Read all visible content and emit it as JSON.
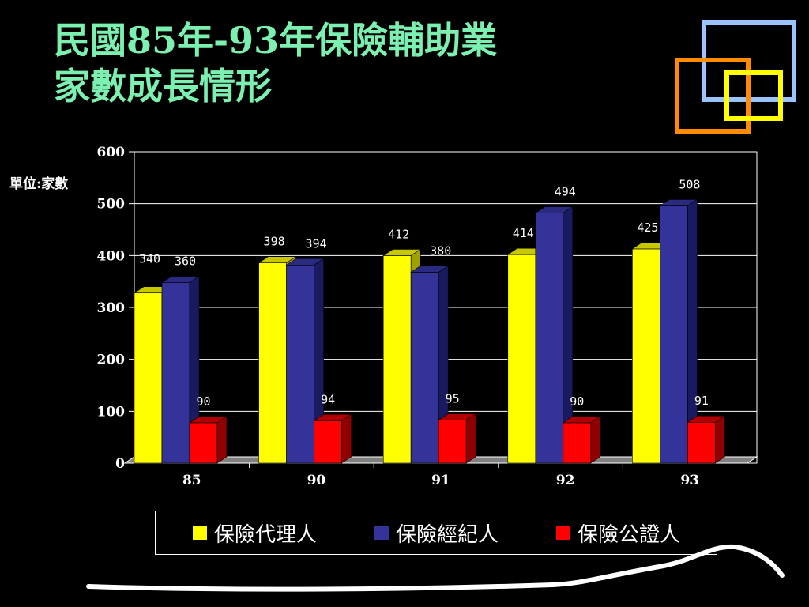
{
  "slide": {
    "title_line1": "民國85年-93年保險輔助業",
    "title_line2": "家數成長情形",
    "unit_label": "單位:家數"
  },
  "colors": {
    "title": "#7CF0B0",
    "series_agent": "#FFFF00",
    "series_broker": "#33339A",
    "series_adjuster": "#FF0000",
    "deco_blue": "#99C4FF",
    "deco_orange": "#FF8C00",
    "deco_yellow": "#FFFF00"
  },
  "chart_data": {
    "type": "bar",
    "title": "",
    "xlabel": "",
    "ylabel": "",
    "categories": [
      "85",
      "90",
      "91",
      "92",
      "93"
    ],
    "series": [
      {
        "name": "保險代理人",
        "values": [
          340,
          398,
          412,
          414,
          425
        ]
      },
      {
        "name": "保險經紀人",
        "values": [
          360,
          394,
          380,
          494,
          508
        ]
      },
      {
        "name": "保險公證人",
        "values": [
          90,
          94,
          95,
          90,
          91
        ]
      }
    ],
    "ylim": [
      0,
      600
    ],
    "yticks": [
      0,
      100,
      200,
      300,
      400,
      500,
      600
    ],
    "grid": true,
    "legend_position": "bottom",
    "style": "3d-clustered-column"
  }
}
